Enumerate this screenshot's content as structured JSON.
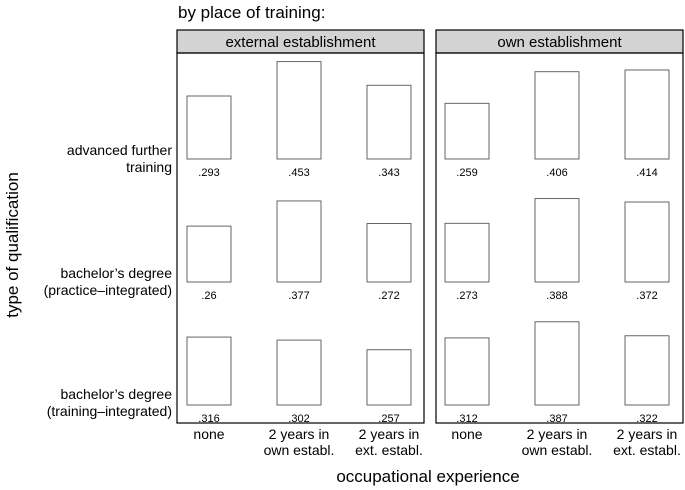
{
  "chart_data": {
    "type": "bar",
    "title": "by place of training:",
    "panels": [
      "external establishment",
      "own establishment"
    ],
    "rows": [
      {
        "label_lines": [
          "advanced further",
          "training"
        ]
      },
      {
        "label_lines": [
          "bachelor’s degree",
          "(practice–integrated)"
        ]
      },
      {
        "label_lines": [
          "bachelor’s degree",
          "(training–integrated)"
        ]
      }
    ],
    "columns": [
      {
        "label_lines": [
          "none"
        ]
      },
      {
        "label_lines": [
          "2 years in",
          "own establ."
        ]
      },
      {
        "label_lines": [
          "2 years in",
          "ext. establ."
        ]
      }
    ],
    "values": [
      [
        [
          0.293,
          0.453,
          0.343
        ],
        [
          0.259,
          0.406,
          0.414
        ]
      ],
      [
        [
          0.26,
          0.377,
          0.272
        ],
        [
          0.273,
          0.388,
          0.372
        ]
      ],
      [
        [
          0.316,
          0.302,
          0.257
        ],
        [
          0.312,
          0.387,
          0.322
        ]
      ]
    ],
    "value_labels": [
      [
        [
          ".293",
          ".453",
          ".343"
        ],
        [
          ".259",
          ".406",
          ".414"
        ]
      ],
      [
        [
          ".26",
          ".377",
          ".272"
        ],
        [
          ".273",
          ".388",
          ".372"
        ]
      ],
      [
        [
          ".316",
          ".302",
          ".257"
        ],
        [
          ".312",
          ".387",
          ".322"
        ]
      ]
    ],
    "xlabel": "occupational experience",
    "ylabel": "type of qualification"
  }
}
